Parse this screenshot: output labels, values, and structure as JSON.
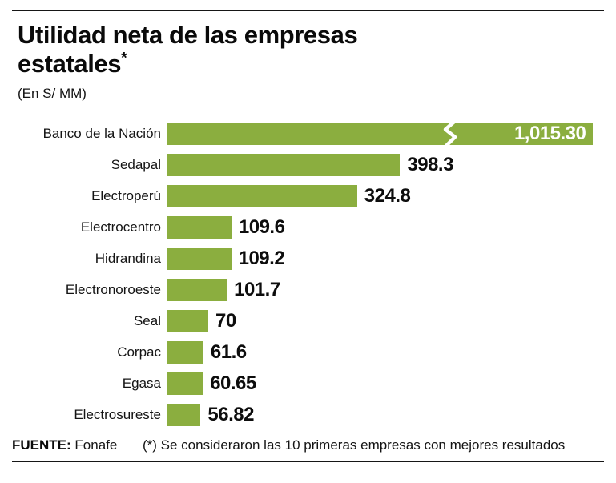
{
  "header": {
    "title_line1": "Utilidad neta de las empresas",
    "title_line2": "estatales",
    "title_asterisk": "*",
    "subtitle": "(En S/ MM)"
  },
  "chart_data": {
    "type": "bar",
    "orientation": "horizontal",
    "title": "Utilidad neta de las empresas estatales",
    "unit_label": "En S/ MM",
    "categories": [
      "Banco de la Nación",
      "Sedapal",
      "Electroperú",
      "Electrocentro",
      "Hidrandina",
      "Electronoroeste",
      "Seal",
      "Corpac",
      "Egasa",
      "Electrosureste"
    ],
    "values": [
      1015.3,
      398.3,
      324.8,
      109.6,
      109.2,
      101.7,
      70,
      61.6,
      60.65,
      56.82
    ],
    "value_labels": [
      "1,015.30",
      "398.3",
      "324.8",
      "109.6",
      "109.2",
      "101.7",
      "70",
      "61.6",
      "60.65",
      "56.82"
    ],
    "bar_color": "#8bae3f",
    "value_color": "#0d0d0d",
    "truncated_bar_index": 0,
    "value_label_inside_bar_index": 0,
    "axis_break_symbol": "zigzag",
    "grid": false,
    "legend": false
  },
  "footer": {
    "source_label": "FUENTE:",
    "source_value": "Fonafe",
    "note": "(*) Se consideraron las 10 primeras empresas con mejores resultados"
  }
}
